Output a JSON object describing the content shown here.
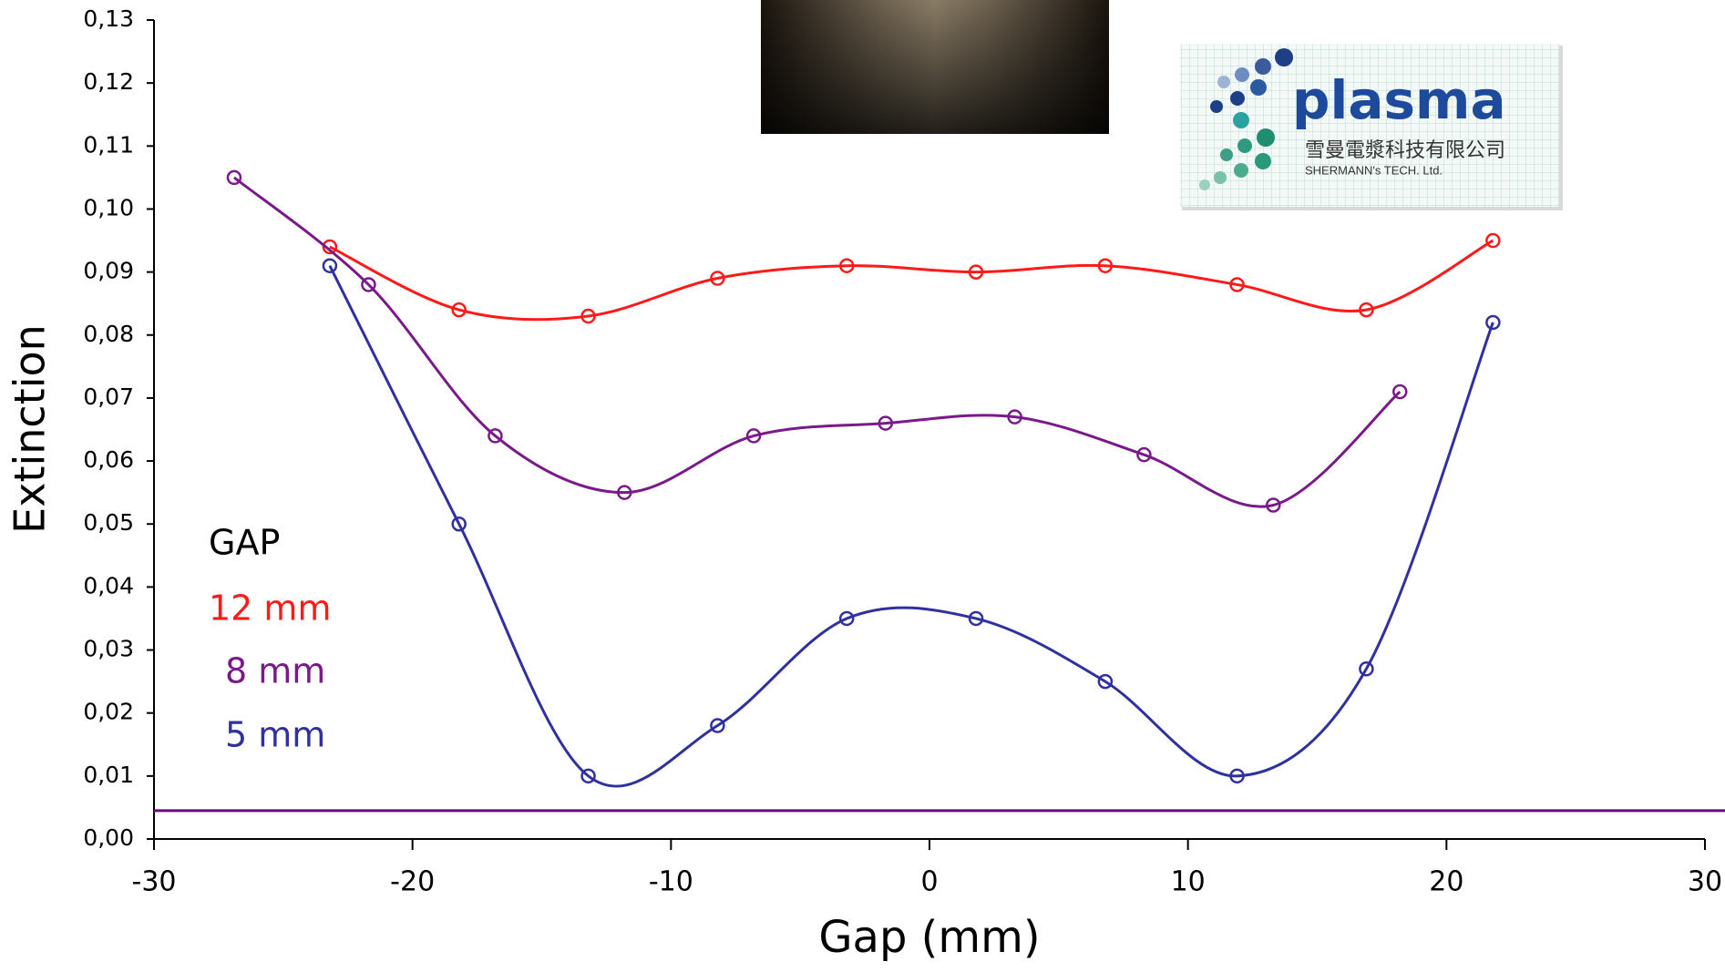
{
  "chart_data": {
    "type": "line",
    "x_label": "Gap (mm)",
    "y_label": "Extinction",
    "xlim": [
      -30,
      30
    ],
    "xticks": [
      -30,
      -20,
      -10,
      0,
      10,
      20,
      30
    ],
    "ylim": [
      0,
      0.13
    ],
    "yticks": [
      {
        "value": 0,
        "label": "0,00"
      },
      {
        "value": 0.01,
        "label": "0,01"
      },
      {
        "value": 0.02,
        "label": "0,02"
      },
      {
        "value": 0.03,
        "label": "0,03"
      },
      {
        "value": 0.04,
        "label": "0,04"
      },
      {
        "value": 0.05,
        "label": "0,05"
      },
      {
        "value": 0.06,
        "label": "0,06"
      },
      {
        "value": 0.07,
        "label": "0,07"
      },
      {
        "value": 0.08,
        "label": "0,08"
      },
      {
        "value": 0.09,
        "label": "0,09"
      },
      {
        "value": 0.1,
        "label": "0,10"
      },
      {
        "value": 0.11,
        "label": "0,11"
      },
      {
        "value": 0.12,
        "label": "0,12"
      },
      {
        "value": 0.13,
        "label": "0,13"
      }
    ],
    "legend_title": "GAP",
    "smooth": true,
    "series": [
      {
        "name": "12 mm",
        "color": "#ff1a1a",
        "x": [
          -23.2,
          -18.2,
          -13.2,
          -8.2,
          -3.2,
          1.8,
          6.8,
          11.9,
          16.9,
          21.8
        ],
        "values": [
          0.094,
          0.084,
          0.083,
          0.089,
          0.091,
          0.09,
          0.091,
          0.088,
          0.084,
          0.095
        ]
      },
      {
        "name": "8 mm",
        "color": "#7a1a8a",
        "x": [
          -26.9,
          -21.7,
          -16.8,
          -11.8,
          -6.8,
          -1.7,
          3.3,
          8.3,
          13.3,
          18.2
        ],
        "values": [
          0.105,
          0.088,
          0.064,
          0.055,
          0.064,
          0.066,
          0.067,
          0.061,
          0.053,
          0.071
        ]
      },
      {
        "name": "5 mm",
        "color": "#3030a0",
        "x": [
          -23.2,
          -18.2,
          -13.2,
          -8.2,
          -3.2,
          1.8,
          6.8,
          11.9,
          16.9,
          21.8
        ],
        "values": [
          0.091,
          0.05,
          0.01,
          0.018,
          0.035,
          0.035,
          0.025,
          0.01,
          0.027,
          0.082
        ]
      }
    ],
    "reference_line": {
      "y": 0.0045,
      "color": "#6a0a7a"
    }
  },
  "logo": {
    "brand": "plasma",
    "chinese_name": "雪曼電漿科技有限公司",
    "english_name": "SHERMANN's TECH. Ltd."
  }
}
